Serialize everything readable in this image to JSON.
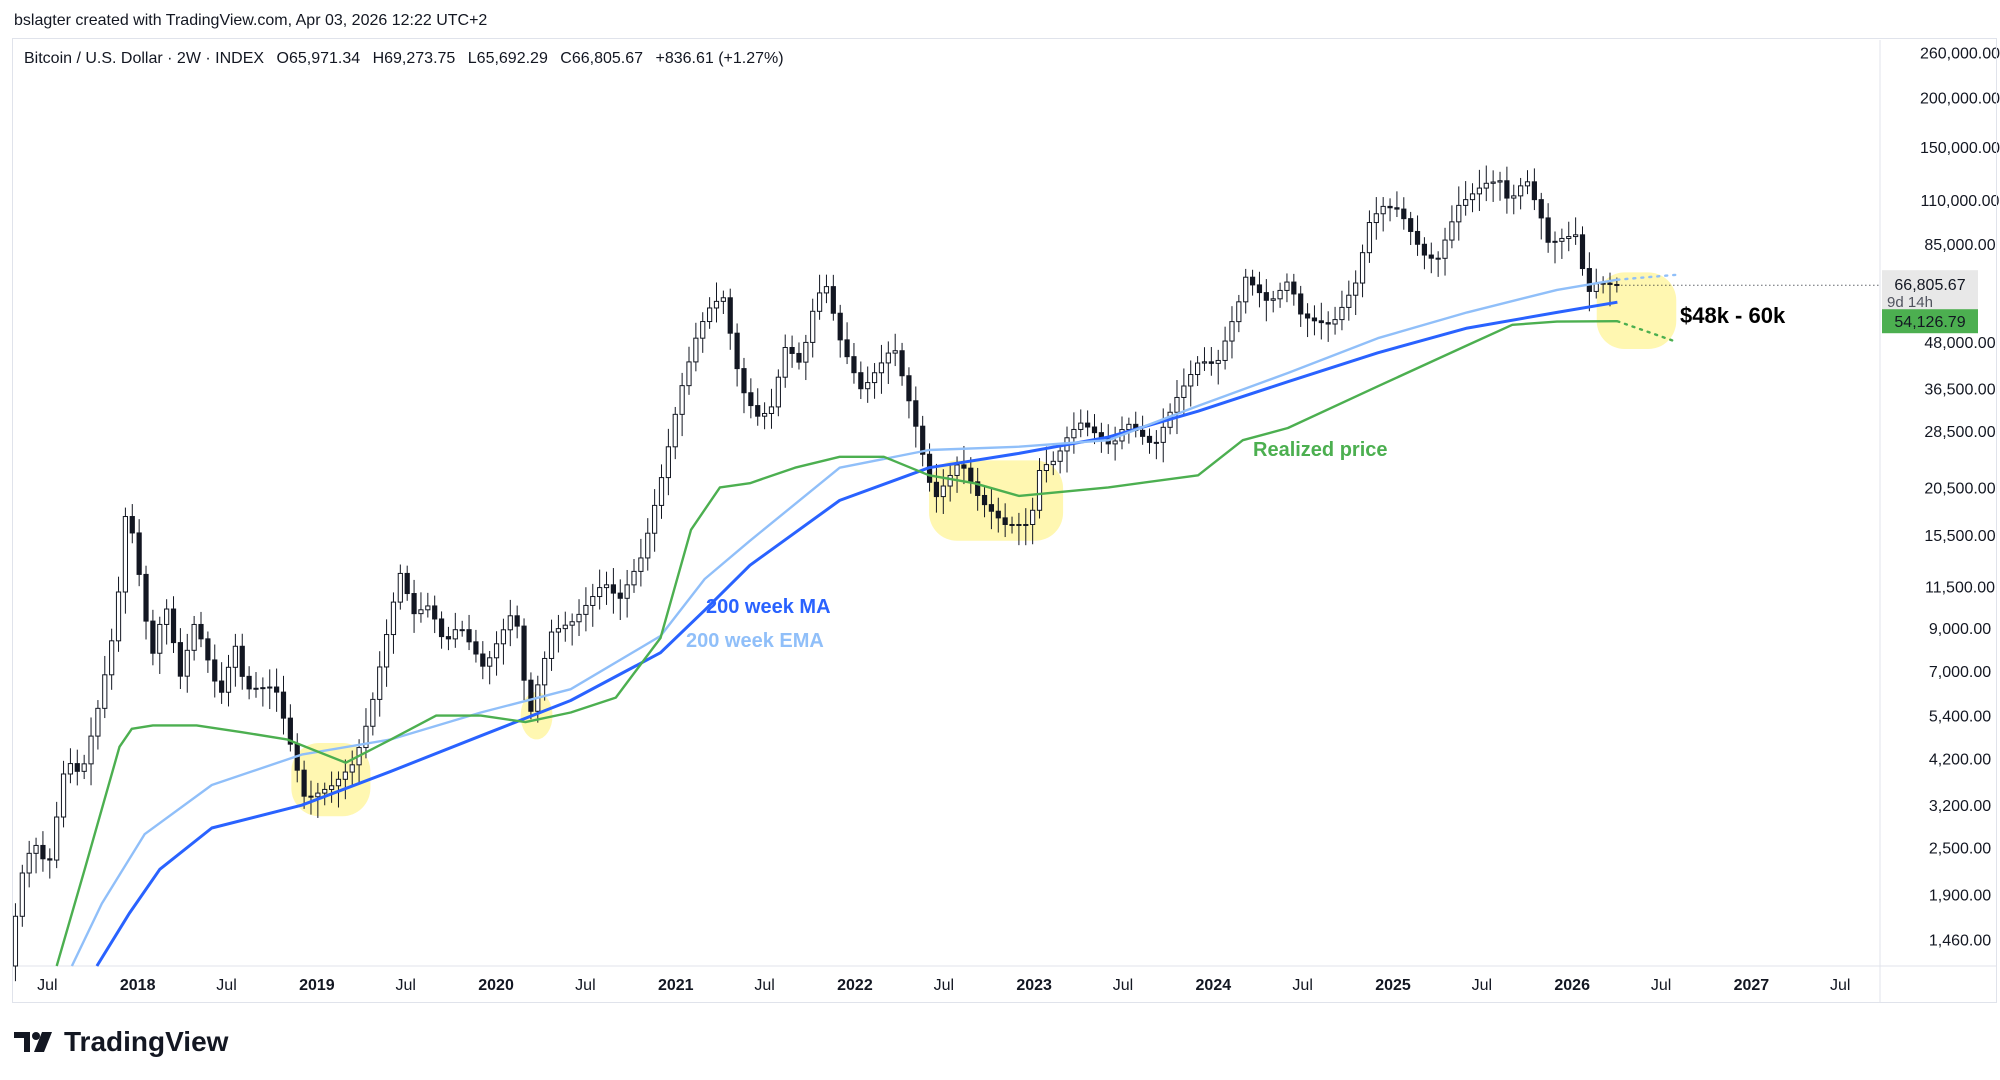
{
  "header": {
    "attribution": "bslagter created with TradingView.com, Apr 03, 2026 12:22 UTC+2"
  },
  "legend": {
    "symbol": "Bitcoin / U.S. Dollar · 2W · INDEX",
    "open": "O65,971.34",
    "high": "H69,273.75",
    "low": "L65,692.29",
    "close": "C66,805.67",
    "change": "+836.61 (+1.27%)"
  },
  "price_badge": {
    "price": "66,805.67",
    "countdown": "9d 14h"
  },
  "realized_badge": {
    "price": "54,126.79"
  },
  "annotations": {
    "range": "$48k - 60k",
    "realized": "Realized price",
    "ma": "200 week MA",
    "ema": "200 week EMA"
  },
  "branding": {
    "name": "TradingView"
  },
  "colors": {
    "ma": "#2962ff",
    "ema": "#90bff9",
    "realized": "#4caf50",
    "highlight": "#fff59d",
    "candle": "#131722",
    "badge_price": "#e8e8e8",
    "badge_realized": "#4caf50"
  },
  "chart_data": {
    "type": "candlestick",
    "title": "Bitcoin / U.S. Dollar · 2W · INDEX",
    "scale": "log",
    "ylim": [
      1250,
      280000
    ],
    "xlim": [
      "2017-04-20",
      "2027-09-20"
    ],
    "y_ticks": [
      1460,
      1900,
      2500,
      3200,
      4200,
      5400,
      7000,
      9000,
      11500,
      15500,
      20500,
      28500,
      36500,
      48000,
      66805.67,
      85000,
      110000,
      150000,
      200000,
      260000
    ],
    "y_tick_labels": [
      "1,460.00",
      "1,900.00",
      "2,500.00",
      "3,200.00",
      "4,200.00",
      "5,400.00",
      "7,000.00",
      "9,000.00",
      "11,500.00",
      "15,500.00",
      "20,500.00",
      "28,500.00",
      "36,500.00",
      "48,000.00",
      "66,805.67",
      "85,000.00",
      "110,000.00",
      "150,000.00",
      "200,000.00",
      "260,000.00"
    ],
    "x_ticks": [
      {
        "date": "2017-07-01",
        "label": "Jul",
        "year": false
      },
      {
        "date": "2018-01-01",
        "label": "2018",
        "year": true
      },
      {
        "date": "2018-07-01",
        "label": "Jul",
        "year": false
      },
      {
        "date": "2019-01-01",
        "label": "2019",
        "year": true
      },
      {
        "date": "2019-07-01",
        "label": "Jul",
        "year": false
      },
      {
        "date": "2020-01-01",
        "label": "2020",
        "year": true
      },
      {
        "date": "2020-07-01",
        "label": "Jul",
        "year": false
      },
      {
        "date": "2021-01-01",
        "label": "2021",
        "year": true
      },
      {
        "date": "2021-07-01",
        "label": "Jul",
        "year": false
      },
      {
        "date": "2022-01-01",
        "label": "2022",
        "year": true
      },
      {
        "date": "2022-07-01",
        "label": "Jul",
        "year": false
      },
      {
        "date": "2023-01-01",
        "label": "2023",
        "year": true
      },
      {
        "date": "2023-07-01",
        "label": "Jul",
        "year": false
      },
      {
        "date": "2024-01-01",
        "label": "2024",
        "year": true
      },
      {
        "date": "2024-07-01",
        "label": "Jul",
        "year": false
      },
      {
        "date": "2025-01-01",
        "label": "2025",
        "year": true
      },
      {
        "date": "2025-07-01",
        "label": "Jul",
        "year": false
      },
      {
        "date": "2026-01-01",
        "label": "2026",
        "year": true
      },
      {
        "date": "2026-07-01",
        "label": "Jul",
        "year": false
      },
      {
        "date": "2027-01-01",
        "label": "2027",
        "year": true
      },
      {
        "date": "2027-07-01",
        "label": "Jul",
        "year": false
      }
    ],
    "price_path": [
      [
        "2017-04-20",
        1250
      ],
      [
        "2017-05-15",
        2100
      ],
      [
        "2017-06-10",
        2600
      ],
      [
        "2017-07-10",
        2200
      ],
      [
        "2017-08-15",
        4200
      ],
      [
        "2017-09-15",
        3800
      ],
      [
        "2017-10-20",
        5700
      ],
      [
        "2017-11-25",
        9500
      ],
      [
        "2017-12-17",
        19000
      ],
      [
        "2018-01-15",
        11500
      ],
      [
        "2018-02-05",
        7500
      ],
      [
        "2018-03-05",
        10500
      ],
      [
        "2018-04-05",
        6800
      ],
      [
        "2018-05-05",
        9400
      ],
      [
        "2018-06-25",
        6000
      ],
      [
        "2018-07-25",
        8200
      ],
      [
        "2018-08-15",
        6300
      ],
      [
        "2018-10-15",
        6400
      ],
      [
        "2018-11-25",
        4100
      ],
      [
        "2018-12-15",
        3300
      ],
      [
        "2019-02-10",
        3600
      ],
      [
        "2019-03-25",
        4100
      ],
      [
        "2019-04-25",
        5400
      ],
      [
        "2019-06-26",
        12500
      ],
      [
        "2019-07-25",
        9800
      ],
      [
        "2019-08-25",
        10300
      ],
      [
        "2019-09-25",
        8200
      ],
      [
        "2019-10-25",
        9200
      ],
      [
        "2019-12-15",
        7100
      ],
      [
        "2020-02-15",
        10200
      ],
      [
        "2020-03-15",
        5300
      ],
      [
        "2020-04-30",
        8800
      ],
      [
        "2020-06-15",
        9400
      ],
      [
        "2020-08-15",
        11800
      ],
      [
        "2020-09-15",
        10600
      ],
      [
        "2020-11-01",
        13800
      ],
      [
        "2020-12-15",
        23000
      ],
      [
        "2021-01-15",
        35000
      ],
      [
        "2021-02-20",
        50000
      ],
      [
        "2021-03-15",
        58000
      ],
      [
        "2021-04-14",
        63000
      ],
      [
        "2021-05-20",
        37000
      ],
      [
        "2021-06-22",
        31000
      ],
      [
        "2021-07-20",
        32000
      ],
      [
        "2021-08-20",
        47000
      ],
      [
        "2021-09-20",
        42000
      ],
      [
        "2021-10-20",
        62000
      ],
      [
        "2021-11-10",
        67000
      ],
      [
        "2021-12-10",
        48000
      ],
      [
        "2022-01-22",
        36000
      ],
      [
        "2022-03-28",
        47000
      ],
      [
        "2022-05-10",
        30000
      ],
      [
        "2022-06-18",
        19000
      ],
      [
        "2022-08-10",
        24000
      ],
      [
        "2022-09-20",
        19000
      ],
      [
        "2022-11-10",
        16500
      ],
      [
        "2022-12-31",
        16500
      ],
      [
        "2023-01-20",
        23000
      ],
      [
        "2023-02-20",
        24000
      ],
      [
        "2023-03-20",
        28000
      ],
      [
        "2023-04-15",
        30000
      ],
      [
        "2023-06-15",
        26000
      ],
      [
        "2023-07-15",
        30000
      ],
      [
        "2023-09-10",
        26000
      ],
      [
        "2023-10-25",
        34500
      ],
      [
        "2023-12-10",
        43000
      ],
      [
        "2024-01-15",
        42000
      ],
      [
        "2024-02-28",
        60000
      ],
      [
        "2024-03-14",
        70000
      ],
      [
        "2024-05-01",
        60000
      ],
      [
        "2024-06-10",
        69000
      ],
      [
        "2024-07-05",
        56000
      ],
      [
        "2024-08-05",
        54000
      ],
      [
        "2024-09-06",
        53000
      ],
      [
        "2024-10-25",
        68000
      ],
      [
        "2024-11-20",
        96000
      ],
      [
        "2024-12-17",
        106000
      ],
      [
        "2025-01-20",
        104000
      ],
      [
        "2025-03-10",
        80000
      ],
      [
        "2025-04-08",
        77000
      ],
      [
        "2025-05-20",
        106000
      ],
      [
        "2025-07-14",
        121000
      ],
      [
        "2025-08-14",
        123000
      ],
      [
        "2025-09-01",
        108000
      ],
      [
        "2025-10-06",
        125000
      ],
      [
        "2025-11-05",
        100000
      ],
      [
        "2025-11-21",
        85000
      ],
      [
        "2025-12-20",
        88000
      ],
      [
        "2026-01-20",
        90000
      ],
      [
        "2026-02-05",
        63000
      ],
      [
        "2026-03-01",
        68000
      ],
      [
        "2026-04-03",
        66805.67
      ]
    ],
    "series": [
      {
        "name": "200 week MA",
        "style": "solid",
        "points": [
          [
            "2017-10-10",
            1250
          ],
          [
            "2017-12-15",
            1700
          ],
          [
            "2018-02-15",
            2200
          ],
          [
            "2018-06-01",
            2800
          ],
          [
            "2018-12-01",
            3200
          ],
          [
            "2019-06-01",
            3900
          ],
          [
            "2019-12-01",
            4800
          ],
          [
            "2020-06-01",
            5900
          ],
          [
            "2020-12-01",
            7800
          ],
          [
            "2021-03-01",
            10000
          ],
          [
            "2021-06-01",
            13000
          ],
          [
            "2021-12-01",
            19000
          ],
          [
            "2022-06-01",
            23000
          ],
          [
            "2022-12-01",
            25000
          ],
          [
            "2023-06-01",
            27500
          ],
          [
            "2023-12-01",
            32000
          ],
          [
            "2024-06-01",
            38000
          ],
          [
            "2024-12-01",
            45000
          ],
          [
            "2025-06-01",
            52000
          ],
          [
            "2025-12-01",
            57000
          ],
          [
            "2026-04-03",
            60500
          ]
        ]
      },
      {
        "name": "200 week EMA",
        "style": "solid",
        "points": [
          [
            "2017-08-20",
            1250
          ],
          [
            "2017-10-20",
            1800
          ],
          [
            "2018-01-15",
            2700
          ],
          [
            "2018-06-01",
            3600
          ],
          [
            "2018-12-01",
            4300
          ],
          [
            "2019-06-01",
            4700
          ],
          [
            "2019-12-01",
            5500
          ],
          [
            "2020-06-01",
            6300
          ],
          [
            "2020-12-01",
            8600
          ],
          [
            "2021-03-01",
            12000
          ],
          [
            "2021-06-01",
            15000
          ],
          [
            "2021-12-01",
            23000
          ],
          [
            "2022-06-01",
            25500
          ],
          [
            "2022-12-01",
            26000
          ],
          [
            "2023-06-01",
            27000
          ],
          [
            "2023-12-01",
            33000
          ],
          [
            "2024-06-01",
            40000
          ],
          [
            "2024-12-01",
            49000
          ],
          [
            "2025-06-01",
            57000
          ],
          [
            "2025-12-01",
            65000
          ],
          [
            "2026-04-03",
            69000
          ]
        ]
      },
      {
        "name": "Realized price",
        "style": "solid",
        "points": [
          [
            "2017-07-20",
            1250
          ],
          [
            "2017-09-15",
            2200
          ],
          [
            "2017-11-25",
            4500
          ],
          [
            "2017-12-20",
            5000
          ],
          [
            "2018-02-01",
            5100
          ],
          [
            "2018-05-01",
            5100
          ],
          [
            "2018-08-01",
            4900
          ],
          [
            "2018-11-01",
            4700
          ],
          [
            "2019-03-01",
            4100
          ],
          [
            "2019-06-01",
            4700
          ],
          [
            "2019-09-01",
            5400
          ],
          [
            "2019-12-01",
            5400
          ],
          [
            "2020-03-01",
            5200
          ],
          [
            "2020-06-01",
            5500
          ],
          [
            "2020-09-01",
            6000
          ],
          [
            "2020-12-01",
            8500
          ],
          [
            "2021-02-01",
            16000
          ],
          [
            "2021-04-01",
            20500
          ],
          [
            "2021-06-01",
            21000
          ],
          [
            "2021-09-01",
            23000
          ],
          [
            "2021-12-01",
            24500
          ],
          [
            "2022-03-01",
            24500
          ],
          [
            "2022-06-01",
            22000
          ],
          [
            "2022-09-01",
            21000
          ],
          [
            "2022-12-01",
            19500
          ],
          [
            "2023-06-01",
            20500
          ],
          [
            "2023-12-01",
            22000
          ],
          [
            "2024-03-01",
            27000
          ],
          [
            "2024-06-01",
            29000
          ],
          [
            "2024-12-01",
            37000
          ],
          [
            "2025-06-01",
            47000
          ],
          [
            "2025-09-01",
            53000
          ],
          [
            "2025-12-01",
            54000
          ],
          [
            "2026-04-03",
            54126.79
          ]
        ]
      }
    ],
    "projections": [
      {
        "name": "EMA projection",
        "points": [
          [
            "2026-04-03",
            69000
          ],
          [
            "2026-08-01",
            71000
          ]
        ]
      },
      {
        "name": "Realized projection",
        "points": [
          [
            "2026-04-03",
            54126.79
          ],
          [
            "2026-08-01",
            48000
          ]
        ]
      }
    ],
    "highlight_regions": [
      {
        "from": "2018-11-10",
        "to": "2019-04-20",
        "low": 3000,
        "high": 4600
      },
      {
        "from": "2020-02-20",
        "to": "2020-04-25",
        "low": 4700,
        "high": 6200
      },
      {
        "from": "2022-06-01",
        "to": "2023-03-01",
        "low": 15000,
        "high": 24000
      },
      {
        "from": "2026-02-20",
        "to": "2026-08-01",
        "low": 46000,
        "high": 72000
      }
    ],
    "last_price": 66805.67,
    "realized_last": 54126.79
  }
}
